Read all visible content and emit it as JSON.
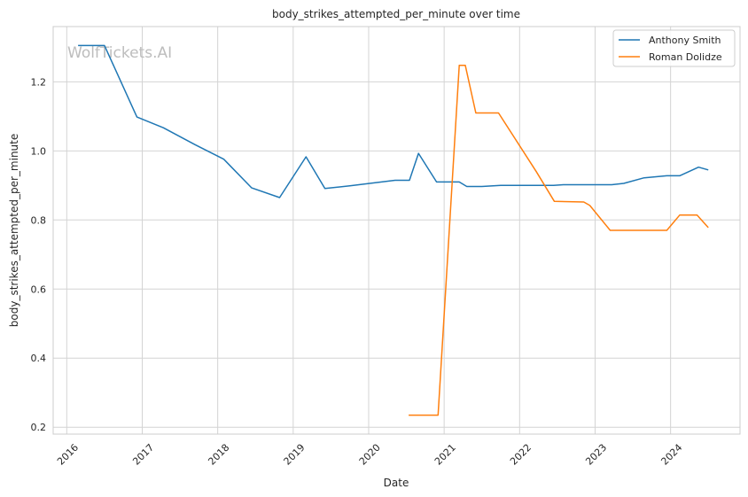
{
  "chart_data": {
    "type": "line",
    "title": "body_strikes_attempted_per_minute over time",
    "xlabel": "Date",
    "ylabel": "body_strikes_attempted_per_minute",
    "watermark": "WolfTickets.AI",
    "xlim": [
      2015.82,
      2024.92
    ],
    "ylim": [
      0.18,
      1.36
    ],
    "x_ticks": [
      2016,
      2017,
      2018,
      2019,
      2020,
      2021,
      2022,
      2023,
      2024
    ],
    "x_tick_labels": [
      "2016",
      "2017",
      "2018",
      "2019",
      "2020",
      "2021",
      "2022",
      "2023",
      "2024"
    ],
    "y_ticks": [
      0.2,
      0.4,
      0.6,
      0.8,
      1.0,
      1.2
    ],
    "y_tick_labels": [
      "0.2",
      "0.4",
      "0.6",
      "0.8",
      "1.0",
      "1.2"
    ],
    "grid": true,
    "legend_position": "top-right",
    "series": [
      {
        "name": "Anthony Smith",
        "color": "#1f77b4",
        "x": [
          2016.15,
          2016.5,
          2016.93,
          2017.28,
          2017.7,
          2018.08,
          2018.45,
          2018.82,
          2019.17,
          2019.42,
          2019.75,
          2020.35,
          2020.54,
          2020.66,
          2020.9,
          2021.2,
          2021.3,
          2021.5,
          2021.75,
          2022.1,
          2022.45,
          2022.58,
          2022.95,
          2023.22,
          2023.38,
          2023.65,
          2023.95,
          2024.12,
          2024.37,
          2024.5
        ],
        "y": [
          1.305,
          1.305,
          1.098,
          1.067,
          1.018,
          0.976,
          0.893,
          0.865,
          0.983,
          0.891,
          0.899,
          0.915,
          0.915,
          0.993,
          0.91,
          0.91,
          0.897,
          0.897,
          0.9,
          0.9,
          0.9,
          0.902,
          0.902,
          0.902,
          0.906,
          0.922,
          0.928,
          0.928,
          0.953,
          0.945
        ]
      },
      {
        "name": "Roman Dolidze",
        "color": "#ff7f0e",
        "x": [
          2020.53,
          2020.92,
          2021.2,
          2021.28,
          2021.42,
          2021.72,
          2022.22,
          2022.46,
          2022.85,
          2022.93,
          2023.2,
          2023.95,
          2024.12,
          2024.35,
          2024.5
        ],
        "y": [
          0.235,
          0.235,
          1.248,
          1.248,
          1.11,
          1.11,
          0.94,
          0.854,
          0.852,
          0.842,
          0.77,
          0.77,
          0.814,
          0.814,
          0.778
        ]
      }
    ]
  }
}
